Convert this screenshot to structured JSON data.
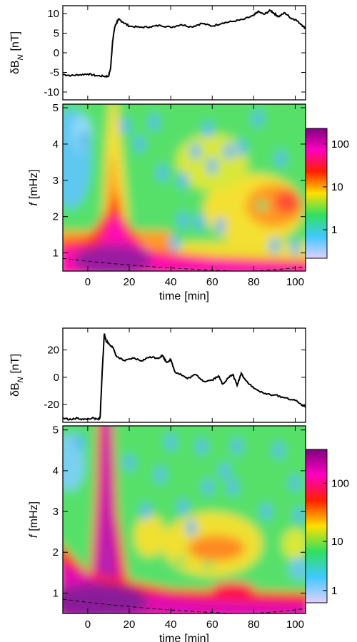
{
  "chart_data": [
    {
      "type": "line",
      "ylabel": "δB",
      "ylabel_sub": "N",
      "ylabel_unit": "[nT]",
      "xlim": [
        -12,
        105
      ],
      "ylim": [
        -12,
        12
      ],
      "yticks": [
        "10",
        "5",
        "0",
        "-5",
        "-10"
      ],
      "yticks_values": [
        10,
        5,
        0,
        -5,
        -10
      ],
      "x": [
        -12,
        -8,
        -4,
        0,
        4,
        8,
        10,
        11,
        12,
        13,
        14,
        15,
        17,
        20,
        25,
        30,
        35,
        40,
        45,
        50,
        55,
        60,
        65,
        70,
        75,
        80,
        82,
        85,
        88,
        90,
        92,
        95,
        98,
        100,
        103,
        105
      ],
      "y": [
        -5.5,
        -5.8,
        -5.6,
        -5.4,
        -5.8,
        -6,
        -6,
        -4,
        3,
        6.5,
        7.8,
        8.5,
        7.8,
        6.8,
        6.5,
        6.6,
        7,
        6.5,
        7.2,
        6.6,
        7.5,
        6.8,
        7.6,
        8,
        8.5,
        9.5,
        10.5,
        9.8,
        10.8,
        10,
        9.2,
        10.2,
        8.8,
        8.5,
        7.2,
        6.2
      ]
    },
    {
      "type": "heatmap",
      "xlabel": "time",
      "xlabel_unit": "[min]",
      "ylabel": "f",
      "ylabel_unit": "[mHz]",
      "xlim": [
        -12,
        105
      ],
      "ylim": [
        0.5,
        5.1
      ],
      "xticks": [
        "0",
        "20",
        "40",
        "60",
        "80",
        "100"
      ],
      "xticks_values": [
        0,
        20,
        40,
        60,
        80,
        100
      ],
      "yticks": [
        "5",
        "4",
        "3",
        "2",
        "1"
      ],
      "yticks_values": [
        5,
        4,
        3,
        2,
        1
      ],
      "colorbar_scale": "log",
      "colorbar_ticks": [
        "100",
        "10",
        "1"
      ],
      "colorbar_colors": [
        "#e0d0ff",
        "#40c8ff",
        "#30e060",
        "#ffe000",
        "#ff2000",
        "#ff00c0",
        "#800080"
      ],
      "cone_of_influence": "dashed"
    },
    {
      "type": "line",
      "ylabel": "δB",
      "ylabel_sub": "N",
      "ylabel_unit": "[nT]",
      "xlim": [
        -12,
        105
      ],
      "ylim": [
        -33,
        36
      ],
      "yticks": [
        "20",
        "0",
        "-20"
      ],
      "yticks_values": [
        20,
        0,
        -20
      ],
      "x": [
        -12,
        -8,
        -5,
        -2,
        2,
        5,
        6,
        7,
        8,
        9,
        10,
        12,
        14,
        18,
        22,
        26,
        30,
        34,
        36,
        38,
        40,
        42,
        45,
        48,
        52,
        56,
        60,
        63,
        65,
        68,
        70,
        72,
        74,
        76,
        80,
        85,
        90,
        95,
        100,
        105
      ],
      "y": [
        -30,
        -31,
        -30,
        -31,
        -30,
        -31,
        -29,
        5,
        32,
        26,
        25,
        22,
        15,
        12,
        14,
        12,
        15,
        14,
        16,
        11,
        13,
        4,
        2,
        -1,
        2,
        -3,
        -2,
        1,
        -5,
        0,
        2,
        -6,
        3,
        -2,
        -8,
        -12,
        -13,
        -15,
        -17,
        -22
      ]
    },
    {
      "type": "heatmap",
      "xlabel": "time",
      "xlabel_unit": "[min]",
      "ylabel": "f",
      "ylabel_unit": "[mHz]",
      "xlim": [
        -12,
        105
      ],
      "ylim": [
        0.5,
        5.1
      ],
      "xticks": [
        "0",
        "20",
        "40",
        "60",
        "80",
        "100"
      ],
      "xticks_values": [
        0,
        20,
        40,
        60,
        80,
        100
      ],
      "yticks": [
        "5",
        "4",
        "3",
        "2",
        "1"
      ],
      "yticks_values": [
        5,
        4,
        3,
        2,
        1
      ],
      "colorbar_scale": "log",
      "colorbar_ticks": [
        "100",
        "10",
        "1"
      ],
      "colorbar_colors": [
        "#e0d0ff",
        "#40c8ff",
        "#30e060",
        "#ffe000",
        "#ff2000",
        "#ff00c0",
        "#800080"
      ],
      "cone_of_influence": "dashed"
    }
  ]
}
